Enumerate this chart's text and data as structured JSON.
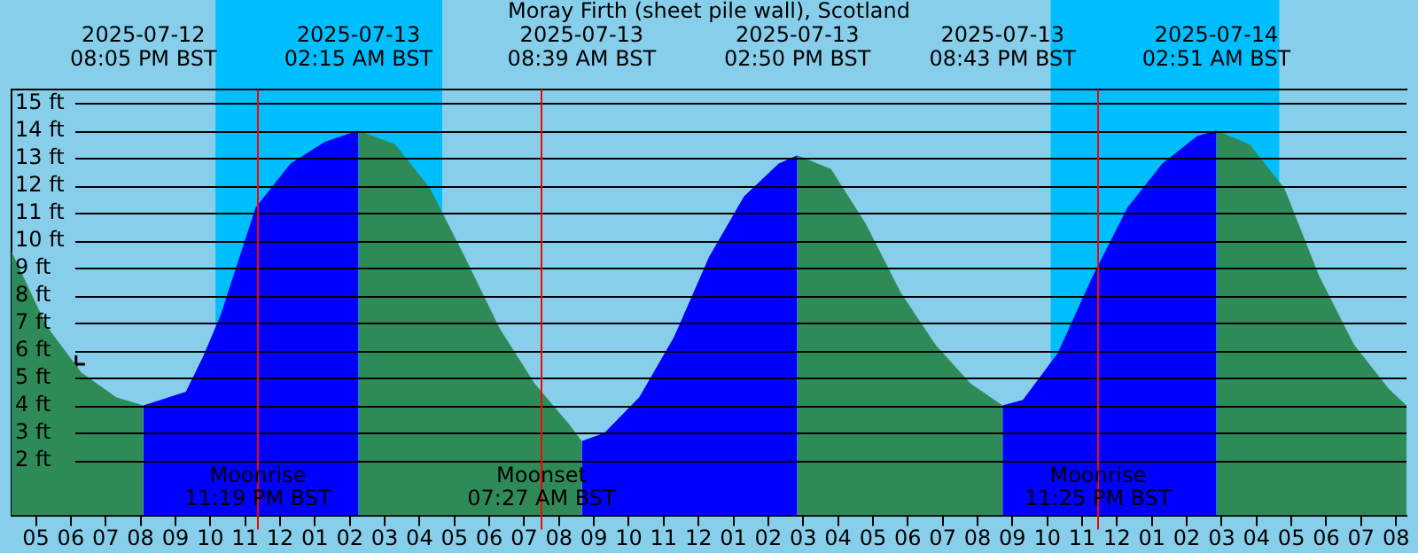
{
  "chart_data": {
    "type": "area",
    "title": "Moray Firth (sheet pile wall), Scotland",
    "xlim": [
      "2025-07-12T16:18",
      "2025-07-14T08:18"
    ],
    "ylim": [
      0,
      15.5
    ],
    "xticks": [
      {
        "value": "2025-07-12T17:00",
        "label": "05"
      },
      {
        "value": "2025-07-12T18:00",
        "label": "06"
      },
      {
        "value": "2025-07-12T19:00",
        "label": "07"
      },
      {
        "value": "2025-07-12T20:00",
        "label": "08"
      },
      {
        "value": "2025-07-12T21:00",
        "label": "09"
      },
      {
        "value": "2025-07-12T22:00",
        "label": "10"
      },
      {
        "value": "2025-07-12T23:00",
        "label": "11"
      },
      {
        "value": "2025-07-13T00:00",
        "label": "12"
      },
      {
        "value": "2025-07-13T01:00",
        "label": "01"
      },
      {
        "value": "2025-07-13T02:00",
        "label": "02"
      },
      {
        "value": "2025-07-13T03:00",
        "label": "03"
      },
      {
        "value": "2025-07-13T04:00",
        "label": "04"
      },
      {
        "value": "2025-07-13T05:00",
        "label": "05"
      },
      {
        "value": "2025-07-13T06:00",
        "label": "06"
      },
      {
        "value": "2025-07-13T07:00",
        "label": "07"
      },
      {
        "value": "2025-07-13T08:00",
        "label": "08"
      },
      {
        "value": "2025-07-13T09:00",
        "label": "09"
      },
      {
        "value": "2025-07-13T10:00",
        "label": "10"
      },
      {
        "value": "2025-07-13T11:00",
        "label": "11"
      },
      {
        "value": "2025-07-13T12:00",
        "label": "12"
      },
      {
        "value": "2025-07-13T13:00",
        "label": "01"
      },
      {
        "value": "2025-07-13T14:00",
        "label": "02"
      },
      {
        "value": "2025-07-13T15:00",
        "label": "03"
      },
      {
        "value": "2025-07-13T16:00",
        "label": "04"
      },
      {
        "value": "2025-07-13T17:00",
        "label": "05"
      },
      {
        "value": "2025-07-13T18:00",
        "label": "06"
      },
      {
        "value": "2025-07-13T19:00",
        "label": "07"
      },
      {
        "value": "2025-07-13T20:00",
        "label": "08"
      },
      {
        "value": "2025-07-13T21:00",
        "label": "09"
      },
      {
        "value": "2025-07-13T22:00",
        "label": "10"
      },
      {
        "value": "2025-07-13T23:00",
        "label": "11"
      },
      {
        "value": "2025-07-14T00:00",
        "label": "12"
      },
      {
        "value": "2025-07-14T01:00",
        "label": "01"
      },
      {
        "value": "2025-07-14T02:00",
        "label": "02"
      },
      {
        "value": "2025-07-14T03:00",
        "label": "03"
      },
      {
        "value": "2025-07-14T04:00",
        "label": "04"
      },
      {
        "value": "2025-07-14T05:00",
        "label": "05"
      },
      {
        "value": "2025-07-14T06:00",
        "label": "06"
      },
      {
        "value": "2025-07-14T07:00",
        "label": "07"
      },
      {
        "value": "2025-07-14T08:00",
        "label": "08"
      }
    ],
    "x2lim": [
      "2025-07-12T16:18",
      "2025-07-14T08:18"
    ],
    "x2ticks": [
      {
        "value": "2025-07-12T20:05",
        "label": "2025-07-12\n08:05 PM BST"
      },
      {
        "value": "2025-07-13T02:15",
        "label": "2025-07-13\n02:15 AM BST"
      },
      {
        "value": "2025-07-13T08:39",
        "label": "2025-07-13\n08:39 AM BST"
      },
      {
        "value": "2025-07-13T14:50",
        "label": "2025-07-13\n02:50 PM BST"
      },
      {
        "value": "2025-07-13T20:43",
        "label": "2025-07-13\n08:43 PM BST"
      },
      {
        "value": "2025-07-14T02:51",
        "label": "2025-07-14\n02:51 AM BST"
      }
    ],
    "yticks": [
      {
        "value": 2,
        "label": "2 ft"
      },
      {
        "value": 3,
        "label": "3 ft"
      },
      {
        "value": 4,
        "label": "4 ft"
      },
      {
        "value": 5,
        "label": "5 ft"
      },
      {
        "value": 6,
        "label": "6 ft"
      },
      {
        "value": 7,
        "label": "7 ft"
      },
      {
        "value": 8,
        "label": "8 ft"
      },
      {
        "value": 9,
        "label": "9 ft"
      },
      {
        "value": 10,
        "label": "10 ft"
      },
      {
        "value": 11,
        "label": "11 ft"
      },
      {
        "value": 12,
        "label": "12 ft"
      },
      {
        "value": 13,
        "label": "13 ft"
      },
      {
        "value": 14,
        "label": "14 ft"
      },
      {
        "value": 15,
        "label": "15 ft"
      }
    ],
    "grid": "y",
    "bands": [
      {
        "axis": "x",
        "from": "2025-07-12T22:09",
        "to": "2025-07-13T04:39",
        "color": "#00bfff"
      },
      {
        "axis": "x",
        "from": "2025-07-13T22:06",
        "to": "2025-07-14T04:39",
        "color": "#00bfff"
      }
    ],
    "ref_lines": [
      {
        "axis": "x",
        "value": "2025-07-12T23:19",
        "label": "Moonrise\n11:19 PM BST",
        "color": "#ff0000"
      },
      {
        "axis": "x",
        "value": "2025-07-13T07:27",
        "label": "Moonset\n07:27 AM BST",
        "color": "#ff0000"
      },
      {
        "axis": "x",
        "value": "2025-07-13T23:25",
        "label": "Moonrise\n11:25 PM BST",
        "color": "#ff0000"
      }
    ],
    "series": [
      {
        "color": "#2e8b57",
        "x": [
          "2025-07-12T16:18",
          "2025-07-12T17:18",
          "2025-07-12T18:18",
          "2025-07-12T19:18",
          "2025-07-12T20:05"
        ],
        "values": [
          9.6,
          6.9,
          5.2,
          4.3,
          4.0
        ]
      },
      {
        "color": "#0000ff",
        "x": [
          "2025-07-12T20:05",
          "2025-07-12T21:18",
          "2025-07-12T21:48",
          "2025-07-12T22:18",
          "2025-07-12T23:18",
          "2025-07-13T00:18",
          "2025-07-13T01:18",
          "2025-07-13T02:15"
        ],
        "values": [
          4.0,
          4.5,
          5.8,
          7.3,
          11.2,
          12.8,
          13.6,
          14.0
        ]
      },
      {
        "color": "#2e8b57",
        "x": [
          "2025-07-13T02:15",
          "2025-07-13T03:18",
          "2025-07-13T04:18",
          "2025-07-13T05:18",
          "2025-07-13T06:18",
          "2025-07-13T07:18",
          "2025-07-13T08:18",
          "2025-07-13T08:39"
        ],
        "values": [
          14.0,
          13.5,
          11.9,
          9.4,
          6.8,
          4.8,
          3.3,
          2.7
        ]
      },
      {
        "color": "#0000ff",
        "x": [
          "2025-07-13T08:39",
          "2025-07-13T09:18",
          "2025-07-13T10:18",
          "2025-07-13T11:18",
          "2025-07-13T12:18",
          "2025-07-13T13:18",
          "2025-07-13T14:18",
          "2025-07-13T14:50"
        ],
        "values": [
          2.7,
          3.0,
          4.3,
          6.5,
          9.4,
          11.6,
          12.8,
          13.1
        ]
      },
      {
        "color": "#2e8b57",
        "x": [
          "2025-07-13T14:50",
          "2025-07-13T15:48",
          "2025-07-13T16:48",
          "2025-07-13T17:48",
          "2025-07-13T18:48",
          "2025-07-13T19:48",
          "2025-07-13T20:43"
        ],
        "values": [
          13.1,
          12.6,
          10.6,
          8.1,
          6.2,
          4.8,
          4.0
        ]
      },
      {
        "color": "#0000ff",
        "x": [
          "2025-07-13T20:43",
          "2025-07-13T21:18",
          "2025-07-13T22:18",
          "2025-07-13T23:18",
          "2025-07-14T00:18",
          "2025-07-14T01:18",
          "2025-07-14T02:18",
          "2025-07-14T02:51"
        ],
        "values": [
          4.0,
          4.2,
          5.9,
          8.7,
          11.2,
          12.8,
          13.8,
          14.0
        ]
      },
      {
        "color": "#2e8b57",
        "x": [
          "2025-07-14T02:51",
          "2025-07-14T03:48",
          "2025-07-14T04:48",
          "2025-07-14T05:48",
          "2025-07-14T06:48",
          "2025-07-14T07:48",
          "2025-07-14T08:18"
        ],
        "values": [
          14.0,
          13.5,
          11.9,
          8.7,
          6.2,
          4.6,
          4.0
        ]
      },
      {
        "type": "scatter",
        "color": "#000000",
        "marker": "cross",
        "x": [
          "2025-07-12T18:09"
        ],
        "values": [
          5.5
        ]
      }
    ]
  }
}
